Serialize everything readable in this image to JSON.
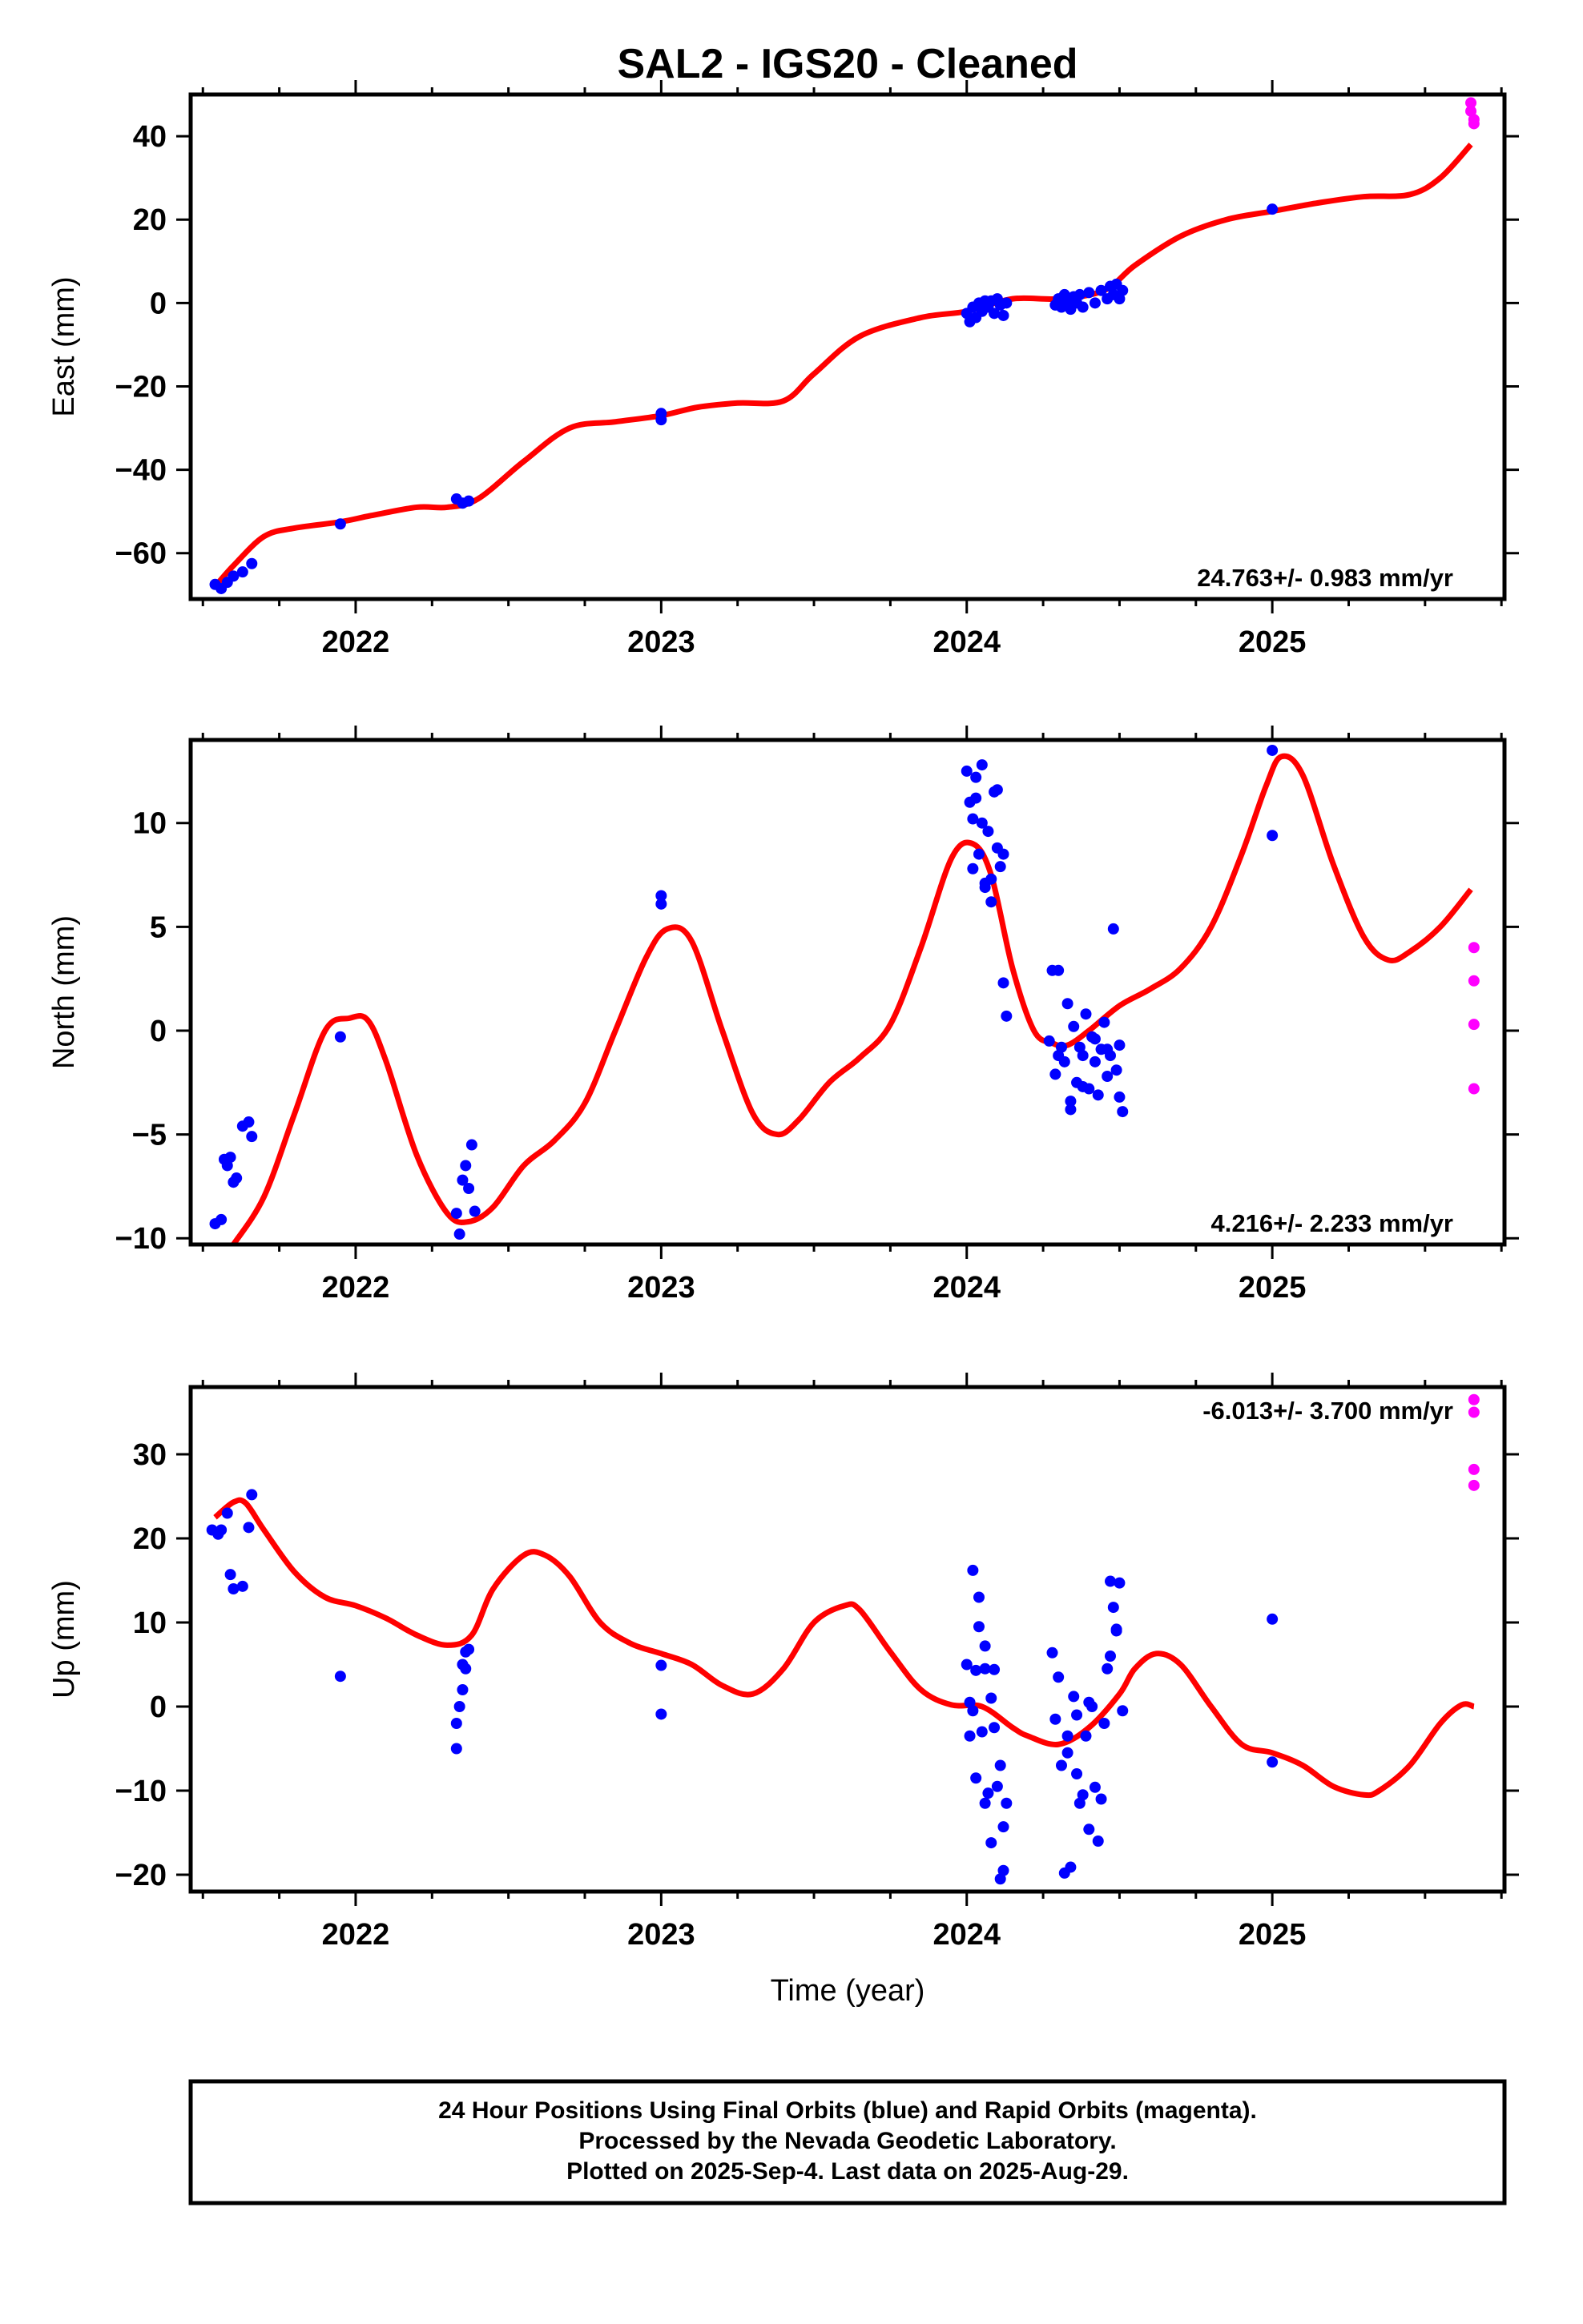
{
  "title": "SAL2  - IGS20 - Cleaned",
  "colors": {
    "final": "#0000ff",
    "rapid": "#ff00ff",
    "model": "#ff0000",
    "frame": "#000000"
  },
  "footer": {
    "line1": "24 Hour Positions Using Final Orbits (blue) and Rapid Orbits (magenta).",
    "line2": "Processed by the Nevada Geodetic Laboratory.",
    "line3": "Plotted on 2025-Sep-4. Last data on 2025-Aug-29."
  },
  "chart_data": [
    {
      "type": "scatter",
      "ylabel": "East (mm)",
      "xlabel": "",
      "xlim": [
        2021.46,
        2025.76
      ],
      "ylim": [
        -71,
        50
      ],
      "xticks": [
        2022,
        2023,
        2024,
        2025
      ],
      "yticks": [
        -60,
        -40,
        -20,
        0,
        20,
        40
      ],
      "yticklabels": [
        "−60",
        "−40",
        "−20",
        "0",
        "20",
        "40"
      ],
      "rate_label": "24.763+/- 0.983 mm/yr",
      "rate_position": "bottom-right",
      "series": [
        {
          "role": "final",
          "x": [
            2021.54,
            2021.56,
            2021.58,
            2021.6,
            2021.63,
            2021.66,
            2021.95,
            2022.33,
            2022.35,
            2022.37,
            2023.0,
            2023.0,
            2024.0,
            2024.01,
            2024.02,
            2024.03,
            2024.04,
            2024.05,
            2024.06,
            2024.07,
            2024.08,
            2024.09,
            2024.1,
            2024.11,
            2024.12,
            2024.13,
            2024.29,
            2024.3,
            2024.31,
            2024.32,
            2024.33,
            2024.34,
            2024.35,
            2024.36,
            2024.37,
            2024.38,
            2024.4,
            2024.42,
            2024.44,
            2024.46,
            2024.47,
            2024.48,
            2024.49,
            2024.5,
            2024.51,
            2025.0
          ],
          "y": [
            -67.5,
            -68.5,
            -67,
            -65.5,
            -64.5,
            -62.5,
            -53,
            -47,
            -48,
            -47.5,
            -26.5,
            -28,
            -2.5,
            -4.5,
            -1,
            -3.5,
            0,
            -2,
            0.5,
            -1,
            0.5,
            -2.5,
            1,
            -0.5,
            -3,
            0,
            -0.5,
            1,
            -1,
            2,
            0.5,
            -1.5,
            1.5,
            0,
            2,
            -1,
            2.5,
            0,
            3,
            1,
            4,
            2,
            4.5,
            1,
            3,
            22.5
          ]
        },
        {
          "role": "rapid",
          "x": [
            2025.65,
            2025.65,
            2025.66,
            2025.66
          ],
          "y": [
            48,
            46,
            44,
            43
          ]
        },
        {
          "role": "model",
          "x": [
            2021.54,
            2021.6,
            2021.7,
            2021.8,
            2021.95,
            2022.05,
            2022.2,
            2022.3,
            2022.4,
            2022.55,
            2022.7,
            2022.85,
            2023.0,
            2023.12,
            2023.25,
            2023.4,
            2023.5,
            2023.65,
            2023.85,
            2024.0,
            2024.15,
            2024.3,
            2024.45,
            2024.55,
            2024.7,
            2024.85,
            2025.0,
            2025.15,
            2025.3,
            2025.45,
            2025.55,
            2025.65
          ],
          "y": [
            -68,
            -63,
            -56,
            -54,
            -52.5,
            -51,
            -49,
            -49,
            -47,
            -38,
            -30,
            -28.5,
            -27,
            -25,
            -24,
            -23.5,
            -17,
            -8,
            -3.5,
            -2,
            1,
            1,
            3,
            9,
            16,
            20,
            22,
            24,
            25.5,
            26,
            30,
            38
          ]
        }
      ]
    },
    {
      "type": "scatter",
      "ylabel": "North (mm)",
      "xlabel": "",
      "xlim": [
        2021.46,
        2025.76
      ],
      "ylim": [
        -10.3,
        14
      ],
      "xticks": [
        2022,
        2023,
        2024,
        2025
      ],
      "yticks": [
        -10,
        -5,
        0,
        5,
        10
      ],
      "yticklabels": [
        "−10",
        "−5",
        "0",
        "5",
        "10"
      ],
      "rate_label": "4.216+/- 2.233 mm/yr",
      "rate_position": "bottom-right",
      "series": [
        {
          "role": "final",
          "x": [
            2021.54,
            2021.56,
            2021.57,
            2021.58,
            2021.59,
            2021.6,
            2021.61,
            2021.63,
            2021.65,
            2021.66,
            2021.95,
            2022.33,
            2022.34,
            2022.35,
            2022.36,
            2022.37,
            2022.38,
            2022.39,
            2023.0,
            2023.0,
            2024.0,
            2024.01,
            2024.02,
            2024.03,
            2024.04,
            2024.05,
            2024.06,
            2024.07,
            2024.08,
            2024.09,
            2024.1,
            2024.11,
            2024.12,
            2024.13,
            2024.02,
            2024.05,
            2024.08,
            2024.1,
            2024.12,
            2024.03,
            2024.06,
            2024.27,
            2024.28,
            2024.29,
            2024.3,
            2024.31,
            2024.32,
            2024.33,
            2024.34,
            2024.35,
            2024.36,
            2024.37,
            2024.38,
            2024.39,
            2024.4,
            2024.41,
            2024.42,
            2024.43,
            2024.44,
            2024.45,
            2024.46,
            2024.47,
            2024.48,
            2024.49,
            2024.5,
            2024.51,
            2024.3,
            2024.34,
            2024.38,
            2024.42,
            2024.46,
            2024.5,
            2025.0,
            2025.0
          ],
          "y": [
            -9.3,
            -9.1,
            -6.2,
            -6.5,
            -6.1,
            -7.3,
            -7.1,
            -4.6,
            -4.4,
            -5.1,
            -0.3,
            -8.8,
            -9.8,
            -7.2,
            -6.5,
            -7.6,
            -5.5,
            -8.7,
            6.5,
            6.1,
            12.5,
            11,
            7.8,
            12.2,
            8.5,
            10,
            6.9,
            9.6,
            7.3,
            11.5,
            8.8,
            7.9,
            2.3,
            0.7,
            10.2,
            12.8,
            6.2,
            11.6,
            8.5,
            11.2,
            7.1,
            -0.5,
            2.9,
            -2.1,
            2.9,
            -0.8,
            -1.5,
            1.3,
            -3.4,
            0.2,
            -2.5,
            -0.8,
            -1.2,
            0.8,
            -2.8,
            -0.3,
            -1.5,
            -3.1,
            -0.9,
            0.4,
            -2.2,
            -1.2,
            4.9,
            -1.9,
            -0.7,
            -3.9,
            -1.2,
            -3.8,
            -2.7,
            -0.4,
            -0.9,
            -3.2,
            13.5,
            9.4
          ]
        },
        {
          "role": "rapid",
          "x": [
            2025.66,
            2025.66,
            2025.66,
            2025.66
          ],
          "y": [
            4,
            2.4,
            0.3,
            -2.8
          ]
        },
        {
          "role": "model",
          "x": [
            2021.6,
            2021.7,
            2021.8,
            2021.9,
            2021.98,
            2022.04,
            2022.1,
            2022.2,
            2022.3,
            2022.37,
            2022.45,
            2022.55,
            2022.65,
            2022.75,
            2022.85,
            2022.95,
            2023.02,
            2023.1,
            2023.2,
            2023.3,
            2023.38,
            2023.45,
            2023.55,
            2023.65,
            2023.75,
            2023.85,
            2023.95,
            2024.02,
            2024.08,
            2024.15,
            2024.22,
            2024.28,
            2024.33,
            2024.4,
            2024.5,
            2024.6,
            2024.7,
            2024.8,
            2024.9,
            2024.98,
            2025.03,
            2025.1,
            2025.2,
            2025.3,
            2025.38,
            2025.45,
            2025.55,
            2025.65
          ],
          "y": [
            -10.3,
            -8,
            -4,
            0,
            0.6,
            0.5,
            -1.5,
            -6,
            -8.8,
            -9.2,
            -8.5,
            -6.5,
            -5.3,
            -3.5,
            0,
            3.5,
            4.9,
            4.3,
            0,
            -4,
            -5,
            -4.3,
            -2.5,
            -1.3,
            0.3,
            4,
            8.3,
            9,
            7.5,
            3,
            0,
            -0.6,
            -0.7,
            0,
            1.2,
            2,
            3,
            5,
            8.5,
            11.8,
            13.2,
            12.3,
            8,
            4.5,
            3.4,
            3.8,
            5,
            6.8
          ]
        }
      ]
    },
    {
      "type": "scatter",
      "ylabel": "Up (mm)",
      "xlabel": "Time (year)",
      "xlim": [
        2021.46,
        2025.76
      ],
      "ylim": [
        -22,
        38
      ],
      "xticks": [
        2022,
        2023,
        2024,
        2025
      ],
      "yticks": [
        -20,
        -10,
        0,
        10,
        20,
        30
      ],
      "yticklabels": [
        "−20",
        "−10",
        "0",
        "10",
        "20",
        "30"
      ],
      "rate_label": "-6.013+/- 3.700 mm/yr",
      "rate_position": "top-right",
      "series": [
        {
          "role": "final",
          "x": [
            2021.53,
            2021.55,
            2021.56,
            2021.58,
            2021.59,
            2021.6,
            2021.63,
            2021.65,
            2021.66,
            2021.95,
            2022.33,
            2022.33,
            2022.34,
            2022.35,
            2022.35,
            2022.36,
            2022.36,
            2022.37,
            2023.0,
            2023.0,
            2024.0,
            2024.01,
            2024.01,
            2024.02,
            2024.03,
            2024.03,
            2024.04,
            2024.05,
            2024.06,
            2024.06,
            2024.07,
            2024.08,
            2024.08,
            2024.09,
            2024.1,
            2024.11,
            2024.12,
            2024.12,
            2024.13,
            2024.02,
            2024.04,
            2024.06,
            2024.09,
            2024.11,
            2024.28,
            2024.29,
            2024.3,
            2024.31,
            2024.32,
            2024.33,
            2024.34,
            2024.35,
            2024.36,
            2024.37,
            2024.38,
            2024.39,
            2024.4,
            2024.41,
            2024.42,
            2024.43,
            2024.44,
            2024.45,
            2024.46,
            2024.47,
            2024.48,
            2024.49,
            2024.5,
            2024.51,
            2024.47,
            2024.49,
            2024.33,
            2024.36,
            2024.4,
            2025.0,
            2025.0
          ],
          "y": [
            21,
            20.5,
            21,
            23,
            15.7,
            14,
            14.3,
            21.3,
            25.2,
            3.6,
            -5,
            -2,
            0,
            2,
            5,
            4.5,
            6.5,
            6.8,
            4.9,
            -0.9,
            5,
            -3.5,
            0.5,
            16.2,
            4.3,
            -8.5,
            13,
            -3,
            -11.5,
            4.5,
            -10.3,
            -16.2,
            1,
            4.4,
            -9.5,
            -20.5,
            -19.5,
            -14.3,
            -11.5,
            -0.5,
            9.5,
            7.2,
            -2.5,
            -7,
            6.4,
            -1.5,
            3.5,
            -7,
            -19.8,
            -5.5,
            -19.1,
            1.2,
            -8,
            -11.5,
            -10.5,
            -3.5,
            -14.6,
            0,
            -9.6,
            -16,
            -11,
            -2,
            4.5,
            14.9,
            11.8,
            9,
            14.7,
            -0.5,
            6,
            9.2,
            -3.5,
            -1,
            0.5,
            10.4,
            -6.6
          ]
        },
        {
          "role": "rapid",
          "x": [
            2025.66,
            2025.66,
            2025.66,
            2025.66
          ],
          "y": [
            36.5,
            35,
            28.2,
            26.3
          ]
        },
        {
          "role": "model",
          "x": [
            2021.54,
            2021.6,
            2021.64,
            2021.7,
            2021.8,
            2021.9,
            2022.0,
            2022.1,
            2022.2,
            2022.3,
            2022.38,
            2022.45,
            2022.55,
            2022.62,
            2022.7,
            2022.8,
            2022.9,
            2023.0,
            2023.1,
            2023.2,
            2023.3,
            2023.4,
            2023.5,
            2023.6,
            2023.65,
            2023.75,
            2023.85,
            2023.95,
            2024.05,
            2024.15,
            2024.2,
            2024.3,
            2024.4,
            2024.5,
            2024.55,
            2024.62,
            2024.7,
            2024.8,
            2024.9,
            2025.0,
            2025.1,
            2025.2,
            2025.3,
            2025.35,
            2025.45,
            2025.55,
            2025.62,
            2025.66
          ],
          "y": [
            22.5,
            24.3,
            24.2,
            21,
            16,
            13,
            12,
            10.5,
            8.5,
            7.3,
            8.5,
            14,
            18,
            18,
            15.5,
            10,
            7.5,
            6.3,
            5,
            2.5,
            1.5,
            4.5,
            10,
            12,
            11.5,
            6.5,
            2,
            0.2,
            0,
            -2.5,
            -3.5,
            -4.5,
            -2.5,
            1.5,
            4.5,
            6.3,
            5,
            0,
            -4.5,
            -5.5,
            -7,
            -9.5,
            -10.5,
            -10,
            -7,
            -2,
            0.2,
            0
          ]
        }
      ]
    }
  ]
}
